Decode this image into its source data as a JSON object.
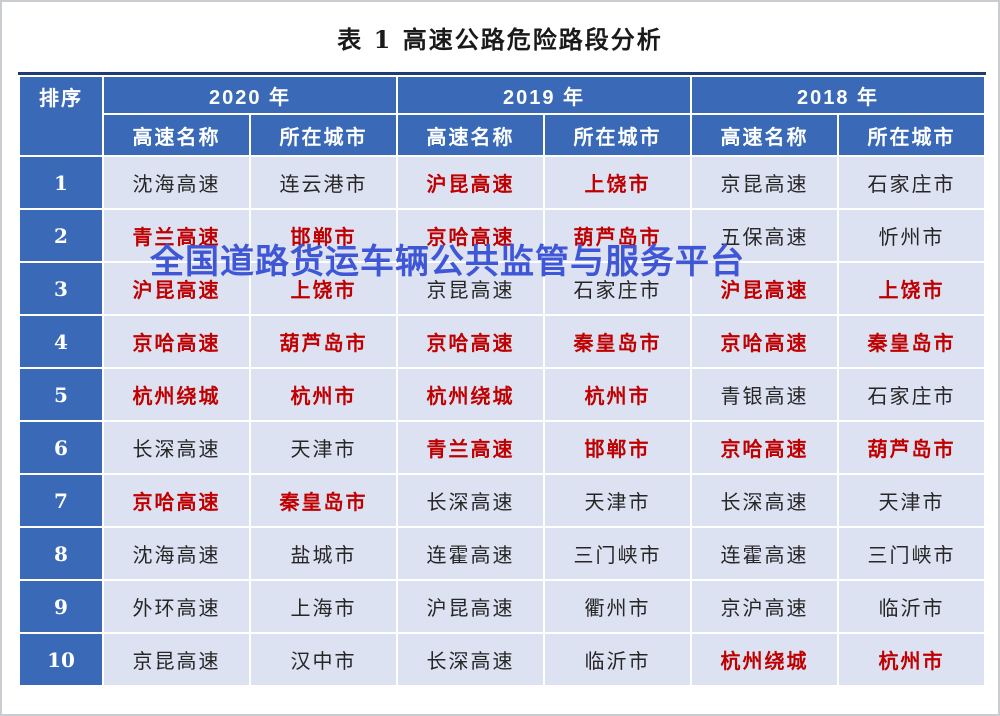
{
  "title": "表 1 高速公路危险路段分析",
  "watermark": {
    "text": "全国道路货运车辆公共监管与服务平台",
    "color": "#3F56D7"
  },
  "colors": {
    "header_blue": "#3A6AB7",
    "cell_bg": "#DCE2F1",
    "red_text": "#C00000",
    "black_text": "#262626",
    "table_top_border": "#1E3C72",
    "watermark_blue": "#3F56D7"
  },
  "table": {
    "rank_header": "排序",
    "year_groups": [
      {
        "year": "2020 年"
      },
      {
        "year": "2019 年"
      },
      {
        "year": "2018 年"
      }
    ],
    "subheaders": [
      "高速名称",
      "所在城市",
      "高速名称",
      "所在城市",
      "高速名称",
      "所在城市"
    ],
    "rows": [
      {
        "rank": "1",
        "cells": [
          {
            "text": "沈海高速",
            "red": false
          },
          {
            "text": "连云港市",
            "red": false
          },
          {
            "text": "沪昆高速",
            "red": true
          },
          {
            "text": "上饶市",
            "red": true
          },
          {
            "text": "京昆高速",
            "red": false
          },
          {
            "text": "石家庄市",
            "red": false
          }
        ]
      },
      {
        "rank": "2",
        "cells": [
          {
            "text": "青兰高速",
            "red": true
          },
          {
            "text": "邯郸市",
            "red": true
          },
          {
            "text": "京哈高速",
            "red": true
          },
          {
            "text": "葫芦岛市",
            "red": true
          },
          {
            "text": "五保高速",
            "red": false
          },
          {
            "text": "忻州市",
            "red": false
          }
        ]
      },
      {
        "rank": "3",
        "cells": [
          {
            "text": "沪昆高速",
            "red": true
          },
          {
            "text": "上饶市",
            "red": true
          },
          {
            "text": "京昆高速",
            "red": false
          },
          {
            "text": "石家庄市",
            "red": false
          },
          {
            "text": "沪昆高速",
            "red": true
          },
          {
            "text": "上饶市",
            "red": true
          }
        ]
      },
      {
        "rank": "4",
        "cells": [
          {
            "text": "京哈高速",
            "red": true
          },
          {
            "text": "葫芦岛市",
            "red": true
          },
          {
            "text": "京哈高速",
            "red": true
          },
          {
            "text": "秦皇岛市",
            "red": true
          },
          {
            "text": "京哈高速",
            "red": true
          },
          {
            "text": "秦皇岛市",
            "red": true
          }
        ]
      },
      {
        "rank": "5",
        "cells": [
          {
            "text": "杭州绕城",
            "red": true
          },
          {
            "text": "杭州市",
            "red": true
          },
          {
            "text": "杭州绕城",
            "red": true
          },
          {
            "text": "杭州市",
            "red": true
          },
          {
            "text": "青银高速",
            "red": false
          },
          {
            "text": "石家庄市",
            "red": false
          }
        ]
      },
      {
        "rank": "6",
        "cells": [
          {
            "text": "长深高速",
            "red": false
          },
          {
            "text": "天津市",
            "red": false
          },
          {
            "text": "青兰高速",
            "red": true
          },
          {
            "text": "邯郸市",
            "red": true
          },
          {
            "text": "京哈高速",
            "red": true
          },
          {
            "text": "葫芦岛市",
            "red": true
          }
        ]
      },
      {
        "rank": "7",
        "cells": [
          {
            "text": "京哈高速",
            "red": true
          },
          {
            "text": "秦皇岛市",
            "red": true
          },
          {
            "text": "长深高速",
            "red": false
          },
          {
            "text": "天津市",
            "red": false
          },
          {
            "text": "长深高速",
            "red": false
          },
          {
            "text": "天津市",
            "red": false
          }
        ]
      },
      {
        "rank": "8",
        "cells": [
          {
            "text": "沈海高速",
            "red": false
          },
          {
            "text": "盐城市",
            "red": false
          },
          {
            "text": "连霍高速",
            "red": false
          },
          {
            "text": "三门峡市",
            "red": false
          },
          {
            "text": "连霍高速",
            "red": false
          },
          {
            "text": "三门峡市",
            "red": false
          }
        ]
      },
      {
        "rank": "9",
        "cells": [
          {
            "text": "外环高速",
            "red": false
          },
          {
            "text": "上海市",
            "red": false
          },
          {
            "text": "沪昆高速",
            "red": false
          },
          {
            "text": "衢州市",
            "red": false
          },
          {
            "text": "京沪高速",
            "red": false
          },
          {
            "text": "临沂市",
            "red": false
          }
        ]
      },
      {
        "rank": "10",
        "cells": [
          {
            "text": "京昆高速",
            "red": false
          },
          {
            "text": "汉中市",
            "red": false
          },
          {
            "text": "长深高速",
            "red": false
          },
          {
            "text": "临沂市",
            "red": false
          },
          {
            "text": "杭州绕城",
            "red": true
          },
          {
            "text": "杭州市",
            "red": true
          }
        ]
      }
    ]
  }
}
